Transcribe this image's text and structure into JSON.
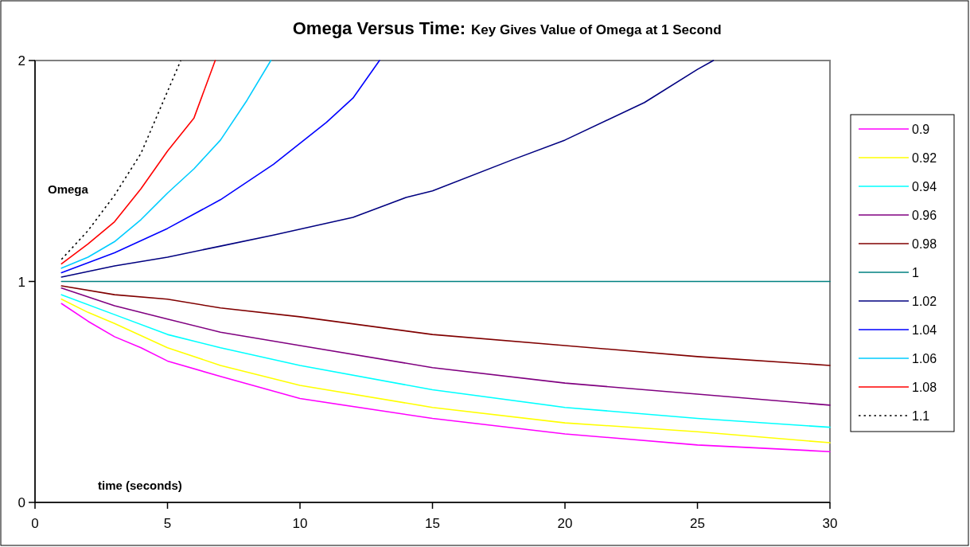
{
  "chart_data": {
    "type": "line",
    "title": "Omega Versus Time:",
    "subtitle": "Key Gives Value of Omega at 1 Second",
    "xlabel": "time (seconds)",
    "ylabel": "Omega",
    "xlim": [
      0,
      30
    ],
    "xticks": [
      0,
      5,
      10,
      15,
      20,
      25,
      30
    ],
    "ylim": [
      0,
      2
    ],
    "yticks": [
      0,
      1,
      2
    ],
    "grid": false,
    "legend": "right",
    "marker": "none",
    "series": [
      {
        "name": "0.9",
        "color": "#ff00ff",
        "x": [
          1,
          2,
          3,
          4,
          5,
          7,
          10,
          15,
          20,
          25,
          30
        ],
        "values": [
          0.9,
          0.82,
          0.75,
          0.7,
          0.64,
          0.57,
          0.47,
          0.38,
          0.31,
          0.26,
          0.23
        ]
      },
      {
        "name": "0.92",
        "color": "#ffff00",
        "x": [
          1,
          2,
          3,
          5,
          7,
          10,
          15,
          20,
          25,
          30
        ],
        "values": [
          0.92,
          0.86,
          0.81,
          0.7,
          0.62,
          0.53,
          0.43,
          0.36,
          0.32,
          0.27
        ]
      },
      {
        "name": "0.94",
        "color": "#00ffff",
        "x": [
          1,
          3,
          5,
          7,
          10,
          15,
          20,
          25,
          30
        ],
        "values": [
          0.94,
          0.85,
          0.76,
          0.7,
          0.62,
          0.51,
          0.43,
          0.38,
          0.34
        ]
      },
      {
        "name": "0.96",
        "color": "#800080",
        "x": [
          1,
          3,
          5,
          7,
          10,
          15,
          20,
          25,
          30
        ],
        "values": [
          0.97,
          0.89,
          0.83,
          0.77,
          0.71,
          0.61,
          0.54,
          0.49,
          0.44
        ]
      },
      {
        "name": "0.98",
        "color": "#800000",
        "x": [
          1,
          3,
          5,
          7,
          10,
          15,
          20,
          25,
          30
        ],
        "values": [
          0.98,
          0.94,
          0.92,
          0.88,
          0.84,
          0.76,
          0.71,
          0.66,
          0.62
        ]
      },
      {
        "name": "1",
        "color": "#008080",
        "x": [
          1,
          30
        ],
        "values": [
          1,
          1
        ]
      },
      {
        "name": "1.02",
        "color": "#000080",
        "x": [
          1,
          3,
          5,
          7,
          9,
          12,
          14,
          15,
          18,
          20,
          23,
          25,
          25.6
        ],
        "values": [
          1.02,
          1.07,
          1.11,
          1.16,
          1.21,
          1.29,
          1.38,
          1.41,
          1.55,
          1.64,
          1.81,
          1.96,
          2
        ]
      },
      {
        "name": "1.04",
        "color": "#0000ff",
        "x": [
          1,
          3,
          5,
          7,
          9,
          11,
          12,
          13
        ],
        "values": [
          1.04,
          1.13,
          1.24,
          1.37,
          1.53,
          1.72,
          1.83,
          2
        ]
      },
      {
        "name": "1.06",
        "color": "#00ccff",
        "x": [
          1,
          2,
          3,
          4,
          5,
          6,
          7,
          8,
          8.9
        ],
        "values": [
          1.06,
          1.11,
          1.18,
          1.28,
          1.4,
          1.51,
          1.64,
          1.82,
          2
        ]
      },
      {
        "name": "1.08",
        "color": "#ff0000",
        "x": [
          1,
          2,
          3,
          4,
          5,
          6,
          6.8
        ],
        "values": [
          1.08,
          1.17,
          1.27,
          1.42,
          1.59,
          1.74,
          2
        ]
      },
      {
        "name": "1.1",
        "color": "#000000",
        "line_style": "dotted",
        "x": [
          1,
          2,
          3,
          4,
          5,
          5.5
        ],
        "values": [
          1.1,
          1.23,
          1.39,
          1.58,
          1.86,
          2
        ]
      }
    ]
  }
}
